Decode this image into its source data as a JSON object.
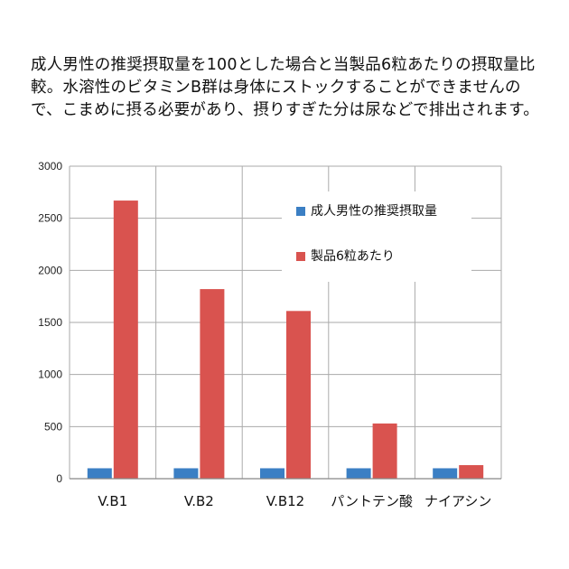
{
  "caption": "成人男性の推奨摂取量を100とした場合と当製品6粒あたりの摂取量比較。水溶性のビタミンB群は身体にストックすることができませんので、こまめに摂る必要があり、摂りすぎた分は尿などで排出されます。",
  "colors": {
    "recommended": "#3b7fc4",
    "product": "#d9534f",
    "grid": "#aaaaaa",
    "axis": "#888888"
  },
  "chart_data": {
    "type": "bar",
    "title": "",
    "xlabel": "",
    "ylabel": "",
    "ylim": [
      0,
      3000
    ],
    "yticks": [
      0,
      500,
      1000,
      1500,
      2000,
      2500,
      3000
    ],
    "grid": true,
    "legend_position": "top-right",
    "categories": [
      "V.B1",
      "V.B2",
      "V.B12",
      "パントテン酸",
      "ナイアシン"
    ],
    "series": [
      {
        "name": "成人男性の推奨摂取量",
        "color": "#3b7fc4",
        "values": [
          100,
          100,
          100,
          100,
          100
        ]
      },
      {
        "name": "製品6粒あたり",
        "color": "#d9534f",
        "values": [
          2670,
          1820,
          1610,
          530,
          130
        ]
      }
    ]
  }
}
